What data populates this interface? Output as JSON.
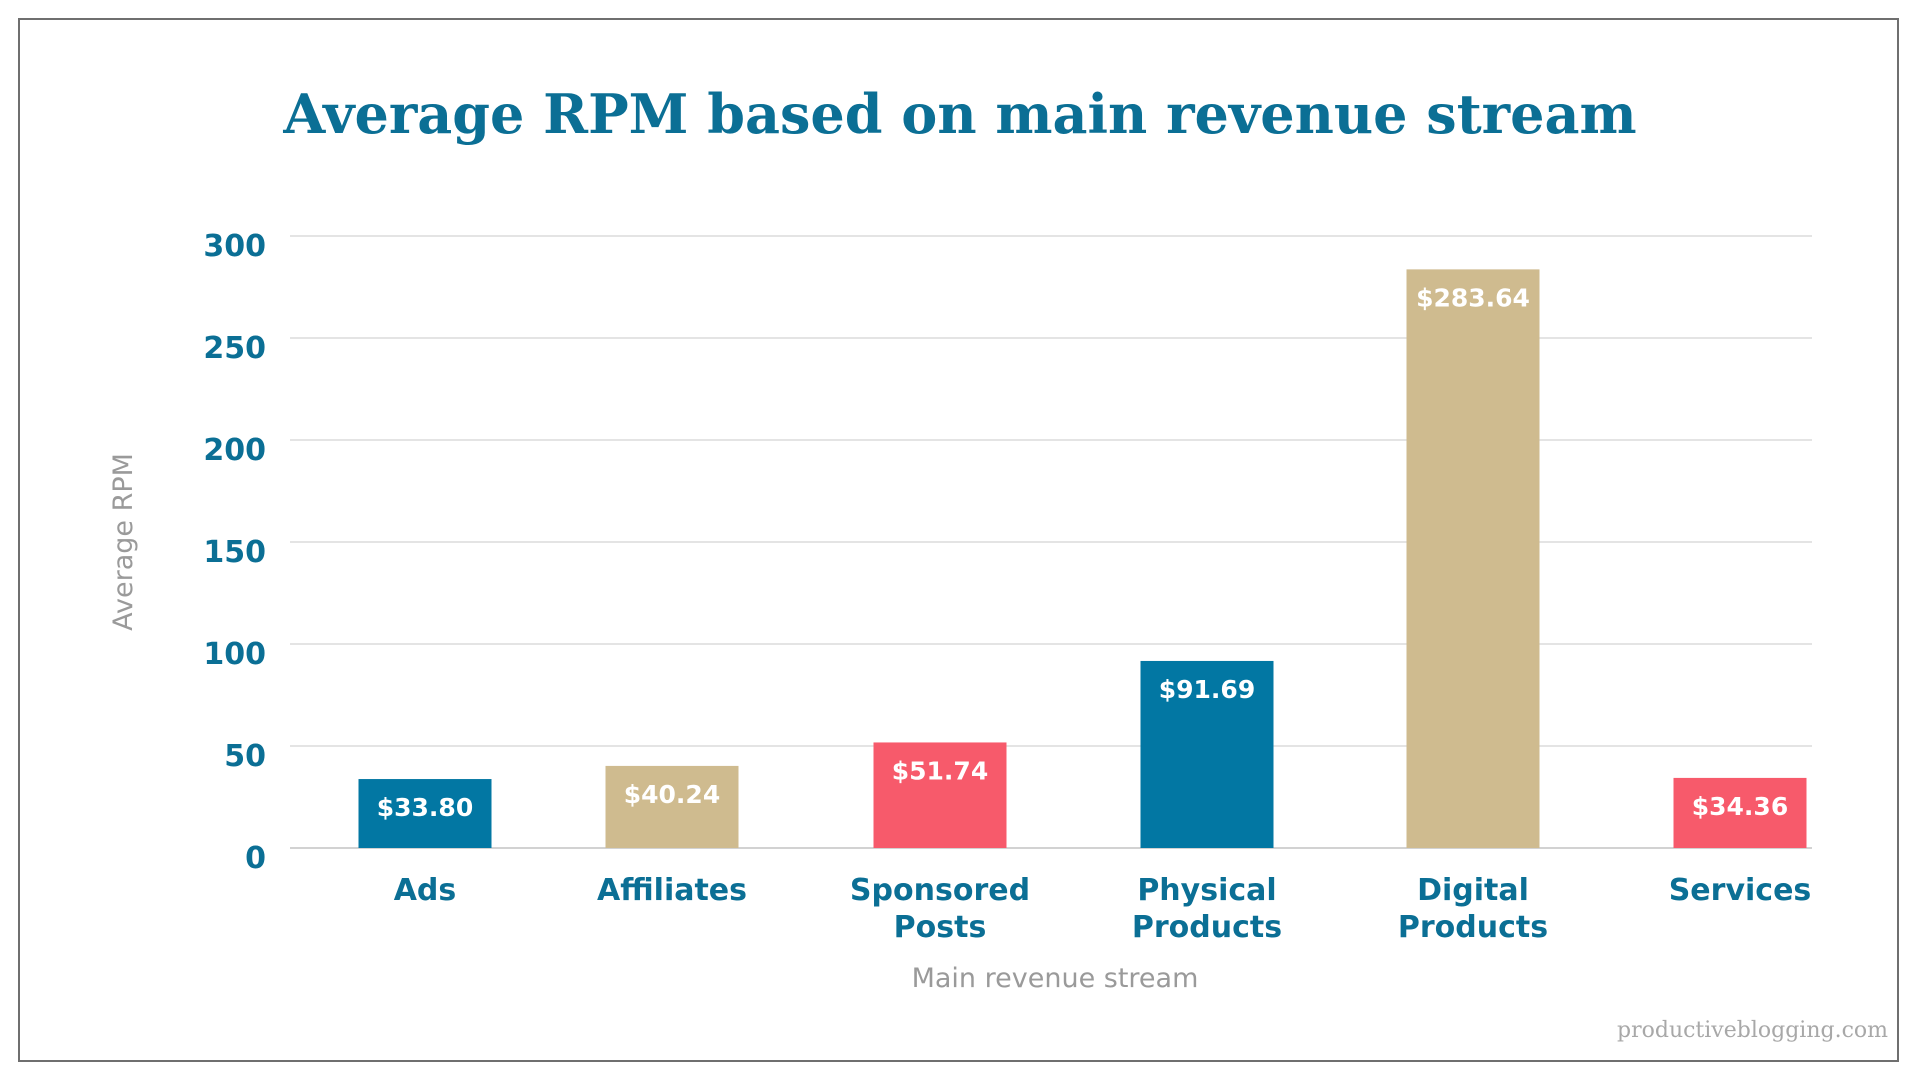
{
  "chart_data": {
    "type": "bar",
    "title": "Average RPM based on main revenue stream",
    "xlabel": "Main revenue stream",
    "ylabel": "Average RPM",
    "ylim": [
      0,
      300
    ],
    "yticks": [
      0,
      50,
      100,
      150,
      200,
      250,
      300
    ],
    "grid": true,
    "categories": [
      [
        "Ads"
      ],
      [
        "Affiliates"
      ],
      [
        "Sponsored",
        "Posts"
      ],
      [
        "Physical",
        "Products"
      ],
      [
        "Digital",
        "Products"
      ],
      [
        "Services"
      ]
    ],
    "values": [
      33.8,
      40.24,
      51.74,
      91.69,
      283.64,
      34.36
    ],
    "data_labels": [
      "$33.80",
      "$40.24",
      "$51.74",
      "$91.69",
      "$283.64",
      "$34.36"
    ],
    "bar_colors": [
      "#0277a3",
      "#cfbb8f",
      "#f75a6b",
      "#0277a3",
      "#cfbb8f",
      "#f75a6b"
    ]
  },
  "footer": {
    "watermark": "productiveblogging.com"
  },
  "colors": {
    "title": "#0b6f95",
    "tick": "#0b6f95",
    "axis_title": "#9a9a9a"
  }
}
